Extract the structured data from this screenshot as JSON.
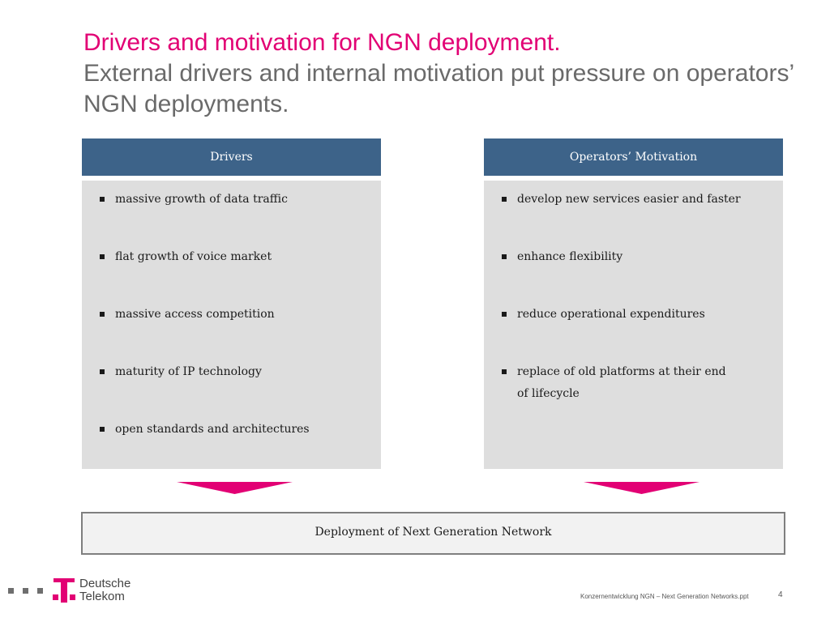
{
  "title": {
    "main": "Drivers and motivation for NGN deployment.",
    "sub": "External drivers and internal motivation put pressure on operators’ NGN deployments."
  },
  "columns": {
    "drivers": {
      "header": "Drivers",
      "items": [
        "massive growth of data traffic",
        "flat growth of voice market",
        "massive access competition",
        "maturity of IP technology",
        "open standards and architectures"
      ]
    },
    "motivation": {
      "header": "Operators’ Motivation",
      "items": [
        "develop new services easier and faster",
        "enhance flexibility",
        "reduce operational expenditures",
        "replace of old platforms at their end of lifecycle"
      ]
    }
  },
  "result": {
    "label": "Deployment of Next Generation Network"
  },
  "logo": {
    "line1": "Deutsche",
    "line2": "Telekom"
  },
  "footer": {
    "note": "Konzernentwicklung  NGN – Next Generation Networks.ppt",
    "page_number": "4"
  },
  "colors": {
    "accent": "#e20074",
    "header_bg": "#3d6389",
    "body_bg": "#dedede"
  }
}
